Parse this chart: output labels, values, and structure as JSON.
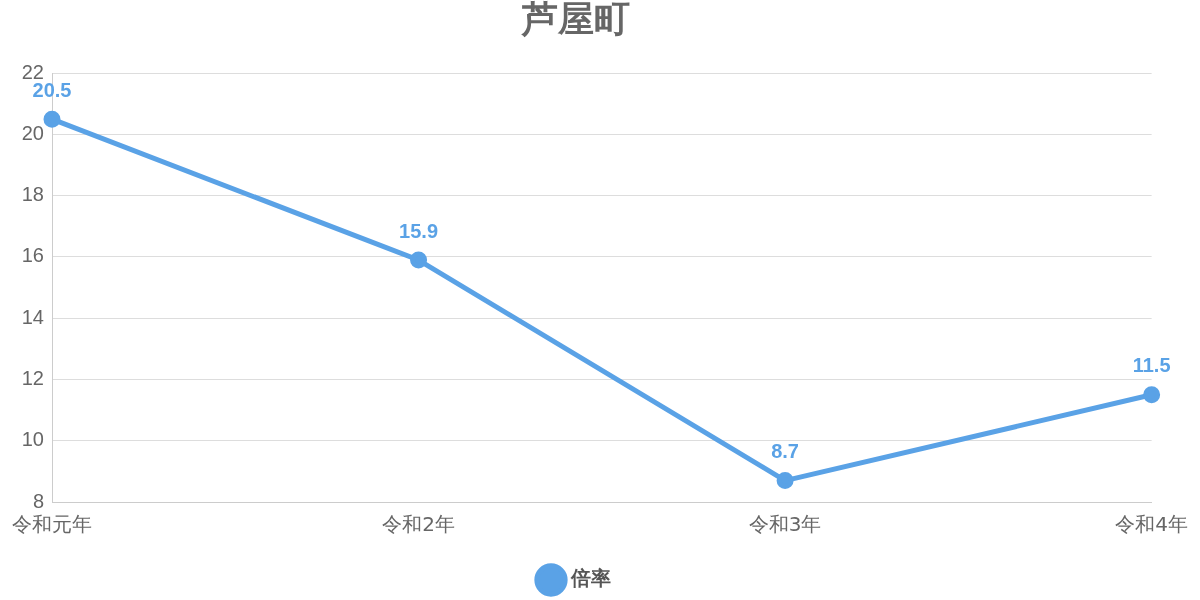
{
  "chart_data": {
    "type": "line",
    "title": "芦屋町",
    "categories": [
      "令和元年",
      "令和2年",
      "令和3年",
      "令和4年"
    ],
    "series": [
      {
        "name": "倍率",
        "color": "#5aa2e6",
        "values": [
          20.5,
          15.9,
          8.7,
          11.5
        ]
      }
    ],
    "ylim": [
      8,
      22
    ],
    "yticks": [
      8,
      10,
      12,
      14,
      16,
      18,
      20,
      22
    ],
    "grid": "y",
    "legend": "bottom",
    "marker": "circle",
    "line_style": "solid",
    "data_labels": true
  }
}
